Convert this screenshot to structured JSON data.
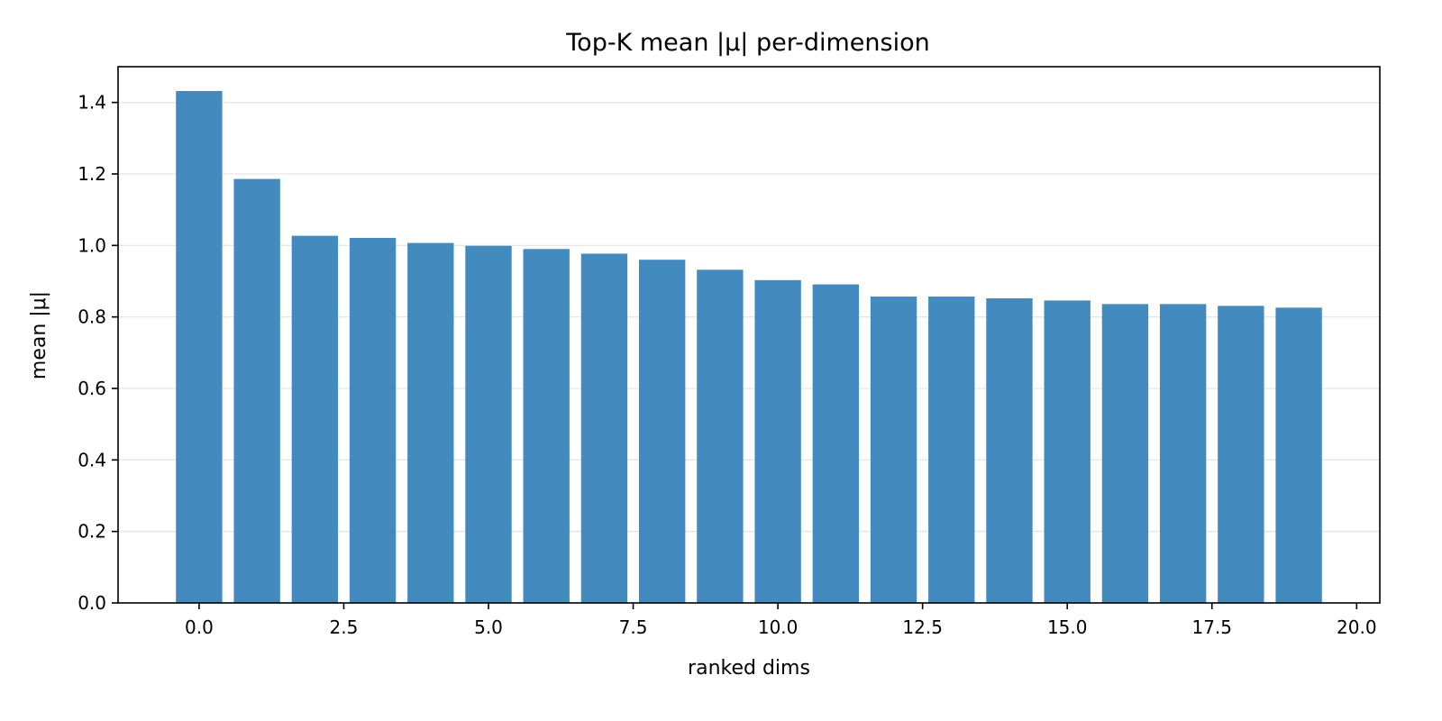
{
  "chart_data": {
    "type": "bar",
    "title": "Top-K mean |μ| per-dimension",
    "xlabel": "ranked dims",
    "ylabel": "mean |μ|",
    "x": [
      0,
      1,
      2,
      3,
      4,
      5,
      6,
      7,
      8,
      9,
      10,
      11,
      12,
      13,
      14,
      15,
      16,
      17,
      18,
      19
    ],
    "values": [
      1.432,
      1.186,
      1.027,
      1.021,
      1.007,
      0.999,
      0.99,
      0.977,
      0.96,
      0.932,
      0.903,
      0.891,
      0.857,
      0.857,
      0.852,
      0.846,
      0.836,
      0.836,
      0.831,
      0.826
    ],
    "xlim": [
      -1.4,
      20.4
    ],
    "ylim": [
      0,
      1.5
    ],
    "xticks": [
      0,
      2.5,
      5,
      7.5,
      10,
      12.5,
      15,
      17.5,
      20
    ],
    "xtick_labels": [
      "0.0",
      "2.5",
      "5.0",
      "7.5",
      "10.0",
      "12.5",
      "15.0",
      "17.5",
      "20.0"
    ],
    "yticks": [
      0,
      0.2,
      0.4,
      0.6,
      0.8,
      1.0,
      1.2,
      1.4
    ],
    "ytick_labels": [
      "0.0",
      "0.2",
      "0.4",
      "0.6",
      "0.8",
      "1.0",
      "1.2",
      "1.4"
    ],
    "bar_color": "#438bbf",
    "grid": "y",
    "bar_width": 0.8
  }
}
